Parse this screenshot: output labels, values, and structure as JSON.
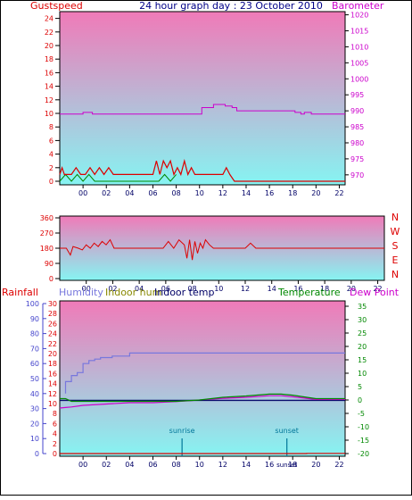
{
  "page": {
    "title": "24 hour graph day : 23 October 2010"
  },
  "colors": {
    "frame": "#000000",
    "plot_top": "#f07ab8",
    "plot_bottom": "#86f4f2",
    "red": "#dd0000",
    "magenta": "#cc00cc",
    "blue": "#4444ff",
    "green": "#008800",
    "navy": "#000066",
    "lavender": "#7777dd",
    "teal": "#007799",
    "olive": "#888800",
    "scale_blue": "#4444cc"
  },
  "chart_data": [
    {
      "type": "line",
      "title": "24 hour graph day : 23 October 2010",
      "left_label": "Gustspeed",
      "right_label": "Barometer",
      "left_ticks": [
        "24",
        "22",
        "20",
        "18",
        "16",
        "14",
        "12",
        "10",
        "8",
        "6",
        "4",
        "2",
        "0"
      ],
      "right_ticks": [
        "1020",
        "1015",
        "1010",
        "1005",
        "1000",
        "995",
        "990",
        "985",
        "980",
        "975",
        "970"
      ],
      "x_ticks": [
        "00",
        "02",
        "04",
        "06",
        "08",
        "10",
        "12",
        "14",
        "16",
        "18",
        "20",
        "22"
      ],
      "ylim_left": [
        0,
        25
      ],
      "ylim_right": [
        968,
        1021
      ],
      "xlim": [
        -2,
        22.5
      ],
      "series": [
        {
          "name": "Barometer",
          "axis": "right",
          "x": [
            -2,
            0,
            0,
            0.8,
            0.8,
            10.2,
            10.2,
            11.2,
            11.2,
            12.2,
            12.2,
            12.8,
            12.8,
            13.2,
            13.2,
            18.2,
            18.2,
            18.7,
            18.7,
            19,
            19,
            19.6,
            19.6,
            22.5
          ],
          "y": [
            989,
            989,
            989.5,
            989.5,
            989,
            989,
            991,
            991,
            992,
            992,
            991.5,
            991.5,
            991,
            991,
            990,
            990,
            989.5,
            989.5,
            989,
            989,
            989.5,
            989.5,
            989,
            989
          ]
        },
        {
          "name": "Gustspeed",
          "axis": "left",
          "x": [
            -2,
            -1.8,
            -1.6,
            -1.4,
            -1.2,
            -1,
            -0.6,
            -0.2,
            0.2,
            0.6,
            1,
            1.4,
            1.8,
            2.2,
            2.6,
            3,
            4,
            5,
            6,
            6.3,
            6.6,
            6.9,
            7.2,
            7.5,
            7.8,
            8.1,
            8.4,
            8.7,
            9,
            9.3,
            9.6,
            10,
            10.4,
            10.8,
            11.2,
            11.6,
            12,
            12.3,
            12.6,
            13,
            16,
            18,
            20,
            22.5
          ],
          "y": [
            1,
            2,
            1,
            1,
            1,
            1,
            2,
            1,
            1,
            2,
            1,
            2,
            1,
            2,
            1,
            1,
            1,
            1,
            1,
            3,
            1,
            3,
            2,
            3,
            1,
            2,
            1,
            3,
            1,
            2,
            1,
            1,
            1,
            1,
            1,
            1,
            1,
            2,
            1,
            0,
            0,
            0,
            0,
            0
          ]
        },
        {
          "name": "Wind",
          "axis": "left",
          "x": [
            -2,
            -1.5,
            -1,
            -0.5,
            0,
            0.5,
            1,
            6.5,
            7,
            7.5,
            8
          ],
          "y": [
            0,
            1,
            0,
            1,
            0,
            1,
            0,
            0,
            1,
            0,
            1
          ]
        }
      ]
    },
    {
      "type": "scatter",
      "left_label_ticks": [
        "360",
        "270",
        "180",
        "90",
        "0"
      ],
      "compass_labels": [
        "N",
        "W",
        "S",
        "E",
        "N"
      ],
      "x_ticks": [
        "00",
        "02",
        "04",
        "06",
        "08",
        "10",
        "12",
        "14",
        "16",
        "18",
        "20",
        "22"
      ],
      "ylim": [
        0,
        360
      ],
      "xlim": [
        -2,
        22.5
      ],
      "series": [
        {
          "name": "Wind direction",
          "x": [
            -2,
            -1.5,
            -1.2,
            -1,
            -0.6,
            -0.3,
            0,
            0.3,
            0.6,
            0.9,
            1.2,
            1.5,
            1.8,
            2.1,
            2.4,
            3,
            4,
            5,
            5.8,
            6.2,
            6.6,
            7,
            7.4,
            7.6,
            7.8,
            8,
            8.2,
            8.4,
            8.6,
            8.8,
            9,
            9.3,
            9.6,
            10,
            10.5,
            11,
            12,
            12.4,
            12.8,
            14,
            16,
            18,
            20,
            22.5
          ],
          "y": [
            180,
            180,
            140,
            190,
            180,
            170,
            200,
            180,
            210,
            190,
            220,
            200,
            230,
            180,
            180,
            180,
            180,
            180,
            180,
            220,
            180,
            230,
            200,
            120,
            230,
            110,
            220,
            150,
            210,
            180,
            230,
            200,
            180,
            180,
            180,
            180,
            180,
            210,
            180,
            180,
            180,
            180,
            180,
            180
          ]
        }
      ]
    },
    {
      "type": "line",
      "labels": {
        "rainfall": "Rainfall",
        "humidity": "Humidity",
        "indoor_hum": "Indoor hum",
        "indoor_temp": "Indoor temp",
        "temperature": "Temperature",
        "dew_point": "Dew Point"
      },
      "rain_ticks": [
        "100",
        "90",
        "80",
        "70",
        "60",
        "50",
        "40",
        "30",
        "20",
        "10",
        "0"
      ],
      "inner_ticks": [
        "30",
        "28",
        "26",
        "24",
        "22",
        "20",
        "18",
        "16",
        "14",
        "12",
        "10",
        "8",
        "6",
        "4",
        "2",
        "0"
      ],
      "right_ticks": [
        "35",
        "30",
        "25",
        "20",
        "15",
        "10",
        "5",
        "0",
        "-5",
        "-10",
        "-15",
        "-20"
      ],
      "x_ticks": [
        "00",
        "02",
        "04",
        "06",
        "08",
        "10",
        "12",
        "14",
        "16",
        "18",
        "20",
        "22"
      ],
      "ylim_humidity": [
        0,
        100
      ],
      "ylim_temperature": [
        -20,
        36
      ],
      "xlim": [
        -2,
        22.5
      ],
      "annotations": [
        {
          "label": "sunrise",
          "x": 8.5
        },
        {
          "label": "sunset",
          "x": 17.5
        }
      ],
      "series": [
        {
          "name": "Humidity",
          "axis": "humidity",
          "x": [
            -1.5,
            -1.5,
            -1,
            -1,
            -0.5,
            -0.5,
            0,
            0,
            0.5,
            0.5,
            1,
            1,
            1.5,
            1.5,
            2.5,
            2.5,
            4,
            4,
            22.5
          ],
          "y": [
            40,
            48,
            48,
            52,
            52,
            54,
            54,
            60,
            60,
            62,
            62,
            63,
            63,
            64,
            64,
            65,
            65,
            67,
            67
          ]
        },
        {
          "name": "Temperature",
          "axis": "temperature",
          "x": [
            -2,
            -1.5,
            -1,
            0,
            2,
            4,
            6,
            8,
            10,
            12,
            14,
            16,
            17,
            18,
            20,
            22.5
          ],
          "y": [
            0.5,
            0.5,
            -0.5,
            -0.5,
            -0.5,
            -0.5,
            -0.5,
            -0.5,
            0,
            1,
            1.5,
            2.2,
            2.2,
            1.8,
            0.5,
            0.5
          ]
        },
        {
          "name": "Dew Point",
          "axis": "temperature",
          "x": [
            -2,
            -1.5,
            -1,
            0,
            2,
            4,
            6,
            8,
            10,
            12,
            14,
            16,
            17,
            18,
            20,
            22.5
          ],
          "y": [
            -3,
            -2.8,
            -2.6,
            -2,
            -1.5,
            -1,
            -1,
            -0.6,
            0,
            0.6,
            1,
            1.6,
            1.6,
            1.2,
            0.2,
            0.2
          ]
        },
        {
          "name": "Indoor temp",
          "axis": "temperature",
          "x": [
            -2,
            22.5
          ],
          "y": [
            -0.2,
            -0.2
          ]
        },
        {
          "name": "Rainfall",
          "axis": "humidity",
          "x": [
            -2,
            19.2,
            19.2,
            22.5
          ],
          "y": [
            0,
            0,
            0.1,
            0.1
          ]
        }
      ]
    }
  ]
}
